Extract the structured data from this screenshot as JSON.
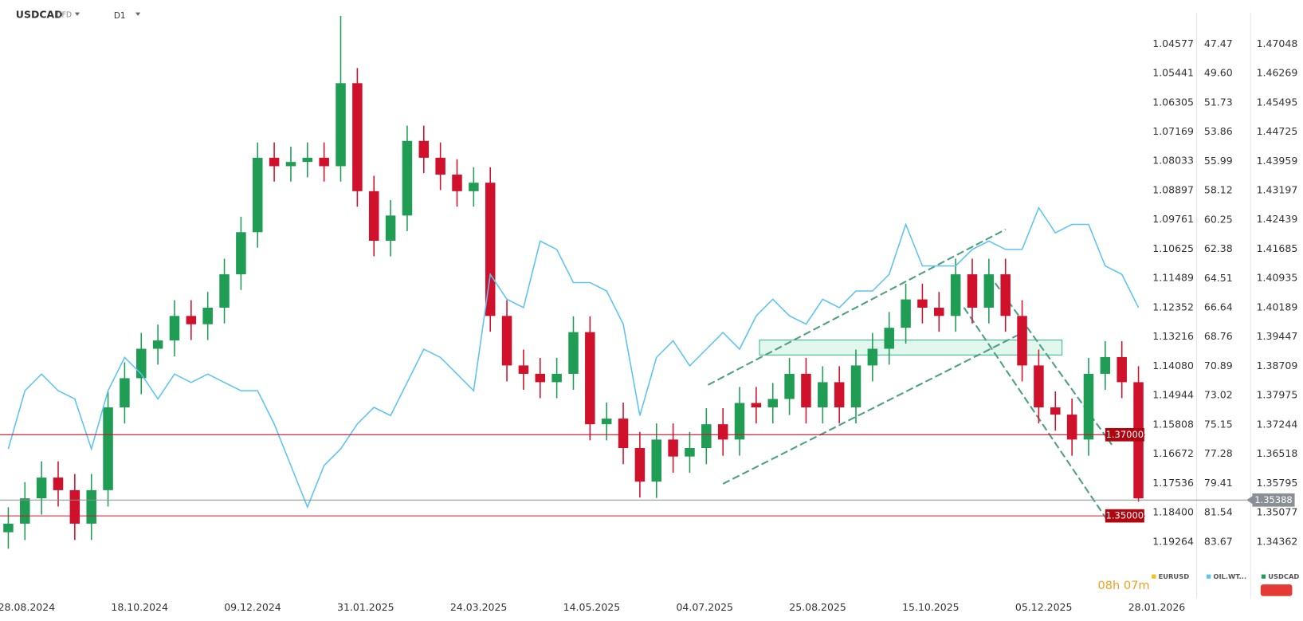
{
  "chart_data": {
    "type": "candlestick",
    "symbol": "USDCAD",
    "symbol_tag": "CFD",
    "interval": "D1",
    "timer": "08h 07m",
    "xticks": [
      "28.08.2024",
      "18.10.2024",
      "09.12.2024",
      "31.01.2025",
      "24.03.2025",
      "14.05.2025",
      "04.07.2025",
      "25.08.2025",
      "15.10.2025",
      "05.12.2025",
      "28.01.2026"
    ],
    "yscale": "log",
    "ylim": [
      1.34362,
      1.47048
    ],
    "yticks": [
      1.47048,
      1.46269,
      1.45495,
      1.44725,
      1.43959,
      1.43197,
      1.42439,
      1.41685,
      1.40935,
      1.40189,
      1.39447,
      1.38709,
      1.37975,
      1.37244,
      1.36518,
      1.35795,
      1.35077,
      1.34362
    ],
    "y2lim": [
      83.67,
      47.47
    ],
    "y2ticks": [
      47.47,
      {
        "value": 49.6,
        "label": "49.60"
      },
      51.73,
      53.86,
      55.99,
      58.12,
      60.25,
      62.38,
      64.51,
      66.64,
      68.76,
      70.89,
      73.02,
      75.15,
      77.28,
      79.41,
      81.54,
      83.67
    ],
    "y3lim": [
      1.19264,
      1.04577
    ],
    "y3ticks": [
      1.04577,
      1.05441,
      1.06305,
      1.07169,
      1.08033,
      1.08897,
      1.09761,
      1.10625,
      1.11489,
      1.12352,
      1.13216,
      {
        "value": 1.1408,
        "label": "1.14080"
      },
      1.14944,
      1.15808,
      1.16672,
      1.17536,
      {
        "value": 1.184,
        "label": "1.18400"
      },
      1.19264
    ],
    "levels": [
      {
        "value": 1.37,
        "label": "1.37000",
        "color": "#d0112b"
      },
      {
        "value": 1.35,
        "label": "1.35000",
        "color": "#d0112b"
      }
    ],
    "last_price": {
      "value": 1.35388,
      "label": "1.35388",
      "color": "#8a8f96"
    },
    "series": [
      {
        "name": "USDCAD",
        "color": "#1f9d55",
        "color_down": "#d0112b",
        "open": [
          1.346,
          1.3481,
          1.3543,
          1.3594,
          1.3563,
          1.3481,
          1.3563,
          1.3768,
          1.3841,
          1.3915,
          1.3936,
          1.3998,
          1.3977,
          1.4019,
          1.4104,
          1.4212,
          1.4405,
          1.4383,
          1.4394,
          1.4405,
          1.4383,
          1.4601,
          1.4318,
          1.419,
          1.4255,
          1.4449,
          1.4405,
          1.4361,
          1.4318,
          1.434,
          1.3998,
          1.3873,
          1.3852,
          1.3831,
          1.3852,
          1.3957,
          1.3726,
          1.374,
          1.3667,
          1.3584,
          1.3688,
          1.3646,
          1.3667,
          1.3726,
          1.3688,
          1.3779,
          1.3768,
          1.3789,
          1.3852,
          1.3768,
          1.3831,
          1.3768,
          1.3873,
          1.3915,
          1.3968,
          1.404,
          1.4019,
          1.3998,
          1.4104,
          1.4019,
          1.4104,
          1.3998,
          1.3873,
          1.3768,
          1.375,
          1.3688,
          1.3852,
          1.3894,
          1.3831
        ],
        "high": [
          1.3521,
          1.3583,
          1.3634,
          1.3634,
          1.3603,
          1.3603,
          1.3808,
          1.3881,
          1.3955,
          1.3976,
          1.4038,
          1.4038,
          1.4059,
          1.4144,
          1.4252,
          1.4445,
          1.4445,
          1.4434,
          1.4445,
          1.4445,
          1.478,
          1.4641,
          1.4358,
          1.4295,
          1.4489,
          1.4489,
          1.4445,
          1.4401,
          1.438,
          1.438,
          1.4038,
          1.3913,
          1.3892,
          1.3892,
          1.3997,
          1.3997,
          1.378,
          1.378,
          1.3707,
          1.3728,
          1.3728,
          1.3707,
          1.3766,
          1.3766,
          1.3819,
          1.3819,
          1.3829,
          1.3892,
          1.3892,
          1.3871,
          1.3871,
          1.3913,
          1.3955,
          1.4008,
          1.408,
          1.408,
          1.4059,
          1.4144,
          1.4144,
          1.4144,
          1.4144,
          1.4038,
          1.3913,
          1.3808,
          1.379,
          1.3892,
          1.3934,
          1.3934,
          1.3871
        ],
        "low": [
          1.342,
          1.3441,
          1.3503,
          1.3523,
          1.3441,
          1.3441,
          1.3523,
          1.3728,
          1.3801,
          1.3875,
          1.3896,
          1.3937,
          1.3937,
          1.3979,
          1.4064,
          1.4172,
          1.4343,
          1.4343,
          1.4354,
          1.4343,
          1.4343,
          1.4278,
          1.415,
          1.415,
          1.4215,
          1.4365,
          1.4321,
          1.4278,
          1.4278,
          1.3958,
          1.3833,
          1.3812,
          1.3791,
          1.3791,
          1.3812,
          1.3686,
          1.3686,
          1.3627,
          1.3545,
          1.3544,
          1.3606,
          1.3606,
          1.3627,
          1.3648,
          1.3648,
          1.3728,
          1.3728,
          1.3749,
          1.3728,
          1.3728,
          1.3728,
          1.3728,
          1.3833,
          1.3875,
          1.3928,
          1.3979,
          1.3958,
          1.3958,
          1.3979,
          1.3979,
          1.3958,
          1.3833,
          1.3728,
          1.371,
          1.3648,
          1.3648,
          1.3812,
          1.3791,
          1.3535
        ],
        "close": [
          1.3481,
          1.3543,
          1.3594,
          1.3563,
          1.3481,
          1.3563,
          1.3768,
          1.3841,
          1.3915,
          1.3936,
          1.3998,
          1.3977,
          1.4019,
          1.4104,
          1.4212,
          1.4405,
          1.4383,
          1.4394,
          1.4405,
          1.4383,
          1.4601,
          1.4318,
          1.419,
          1.4255,
          1.4449,
          1.4405,
          1.4361,
          1.4318,
          1.434,
          1.3998,
          1.3873,
          1.3852,
          1.3831,
          1.3852,
          1.3957,
          1.3726,
          1.374,
          1.3667,
          1.3584,
          1.3688,
          1.3646,
          1.3667,
          1.3726,
          1.3688,
          1.3779,
          1.3768,
          1.3789,
          1.3852,
          1.3768,
          1.3831,
          1.3768,
          1.3873,
          1.3915,
          1.3968,
          1.404,
          1.4019,
          1.3998,
          1.4104,
          1.4019,
          1.4104,
          1.3998,
          1.3873,
          1.3768,
          1.375,
          1.3688,
          1.3852,
          1.3894,
          1.3831,
          1.3543
        ]
      },
      {
        "name": "OIL.WT...",
        "color": "#5cc3f2",
        "axis": "y2",
        "values": [
          76.9,
          72.67,
          71.46,
          72.67,
          73.27,
          76.9,
          72.67,
          70.25,
          71.46,
          73.27,
          71.46,
          72.07,
          71.46,
          72.07,
          72.67,
          72.67,
          75.09,
          78.11,
          81.13,
          78.11,
          76.9,
          75.09,
          73.88,
          74.48,
          72.07,
          69.65,
          70.25,
          71.46,
          72.67,
          64.21,
          66.02,
          66.63,
          61.79,
          62.4,
          64.81,
          64.81,
          65.42,
          67.83,
          74.48,
          70.25,
          69.04,
          70.86,
          69.65,
          68.44,
          69.65,
          67.23,
          66.02,
          67.23,
          67.83,
          66.02,
          66.63,
          65.42,
          65.42,
          64.21,
          60.58,
          63.6,
          63.6,
          63.6,
          62.4,
          61.79,
          62.4,
          62.4,
          59.37,
          61.19,
          60.58,
          60.58,
          63.6,
          64.21,
          66.63
        ]
      },
      {
        "name": "EURUSD",
        "color": "#f2c21b",
        "axis": "y3"
      }
    ]
  }
}
